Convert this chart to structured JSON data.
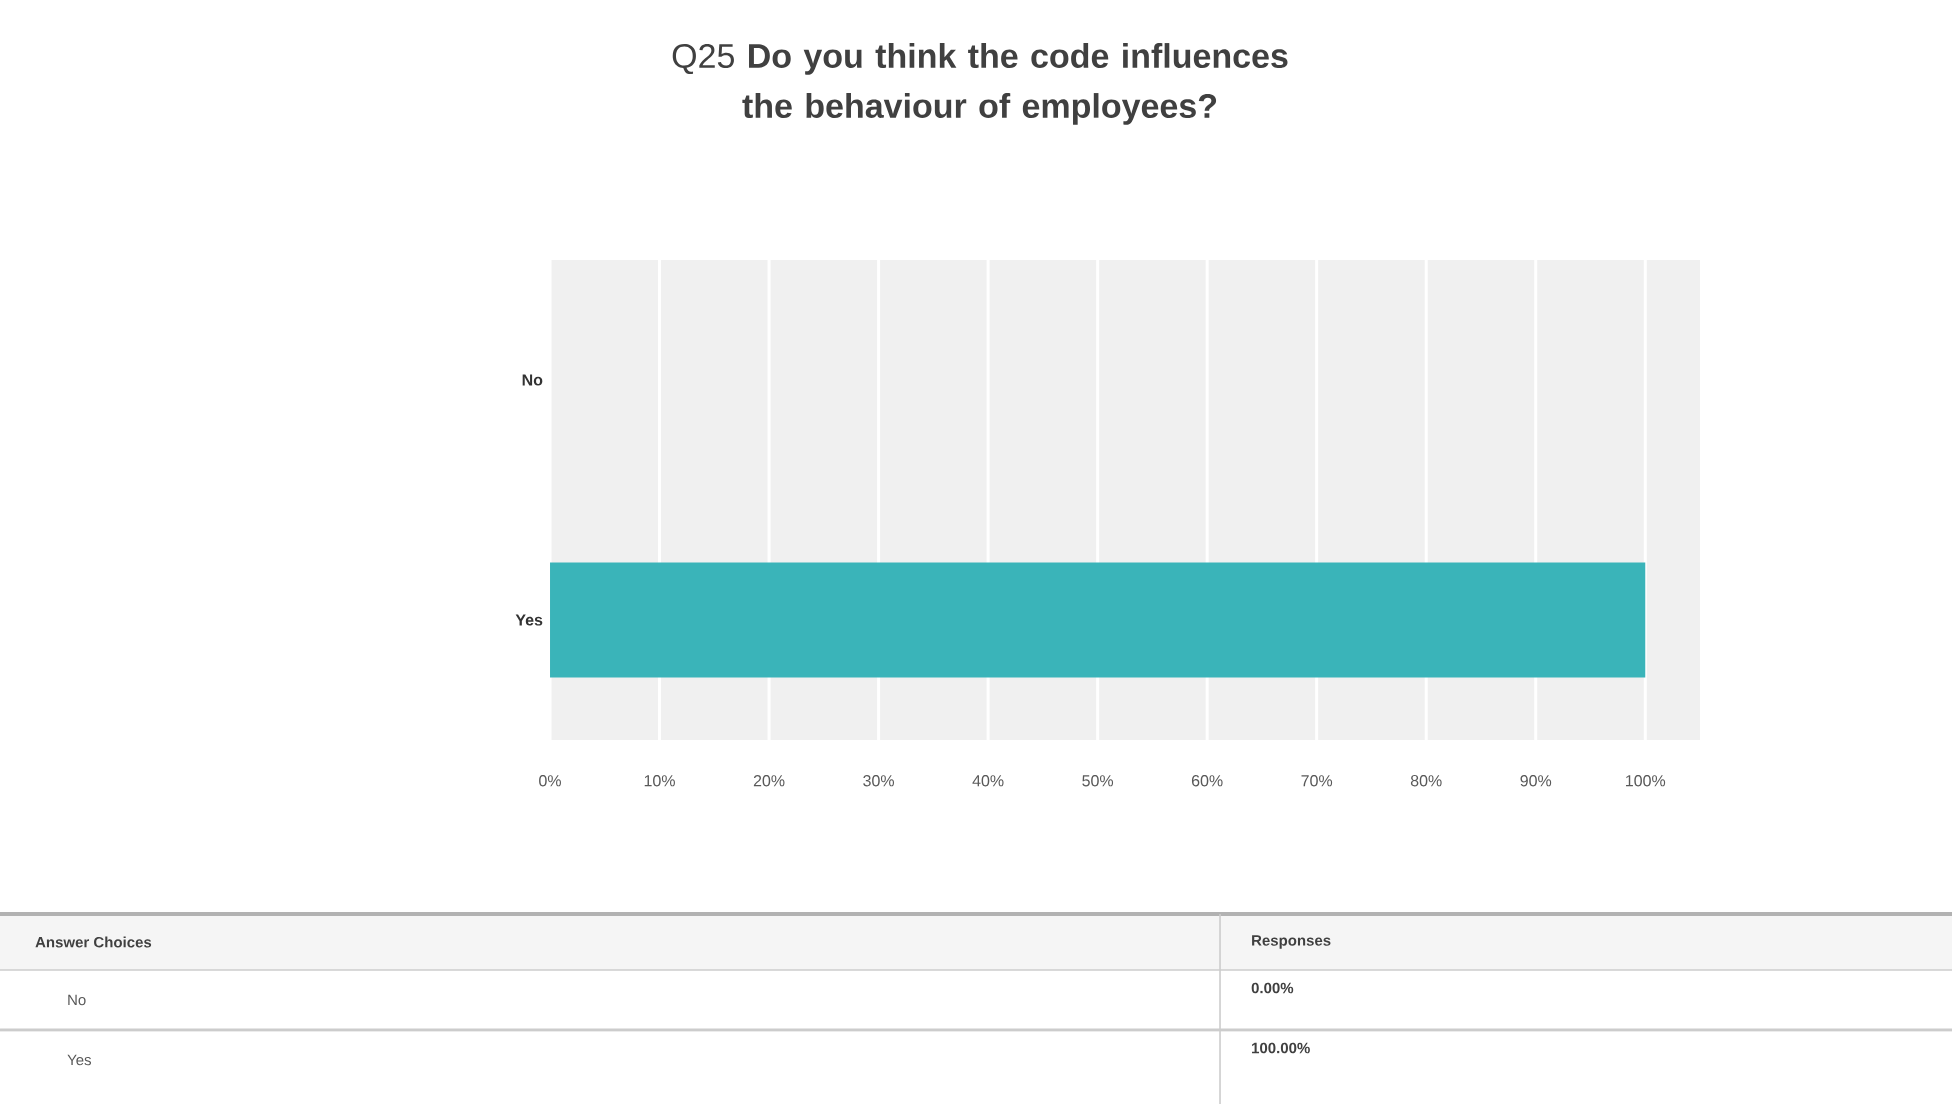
{
  "chart_data": {
    "type": "bar",
    "orientation": "horizontal",
    "title": "Q25 **Do you think the code influences the behaviour of employees?**",
    "categories": [
      "No",
      "Yes"
    ],
    "values": [
      0,
      100
    ],
    "color": "#3ab4b9",
    "xlim": [
      0,
      105
    ],
    "xticks": [
      {
        "value": 0,
        "label": "0%"
      },
      {
        "value": 10,
        "label": "10%"
      },
      {
        "value": 20,
        "label": "20%"
      },
      {
        "value": 30,
        "label": "30%"
      },
      {
        "value": 40,
        "label": "40%"
      },
      {
        "value": 50,
        "label": "50%"
      },
      {
        "value": 60,
        "label": "60%"
      },
      {
        "value": 70,
        "label": "70%"
      },
      {
        "value": 80,
        "label": "80%"
      },
      {
        "value": 90,
        "label": "90%"
      },
      {
        "value": 100,
        "label": "100%"
      }
    ],
    "grid": "x",
    "annotations": [
      "Answer Choices",
      "Responses",
      "0.00%",
      "100.00%"
    ]
  }
}
